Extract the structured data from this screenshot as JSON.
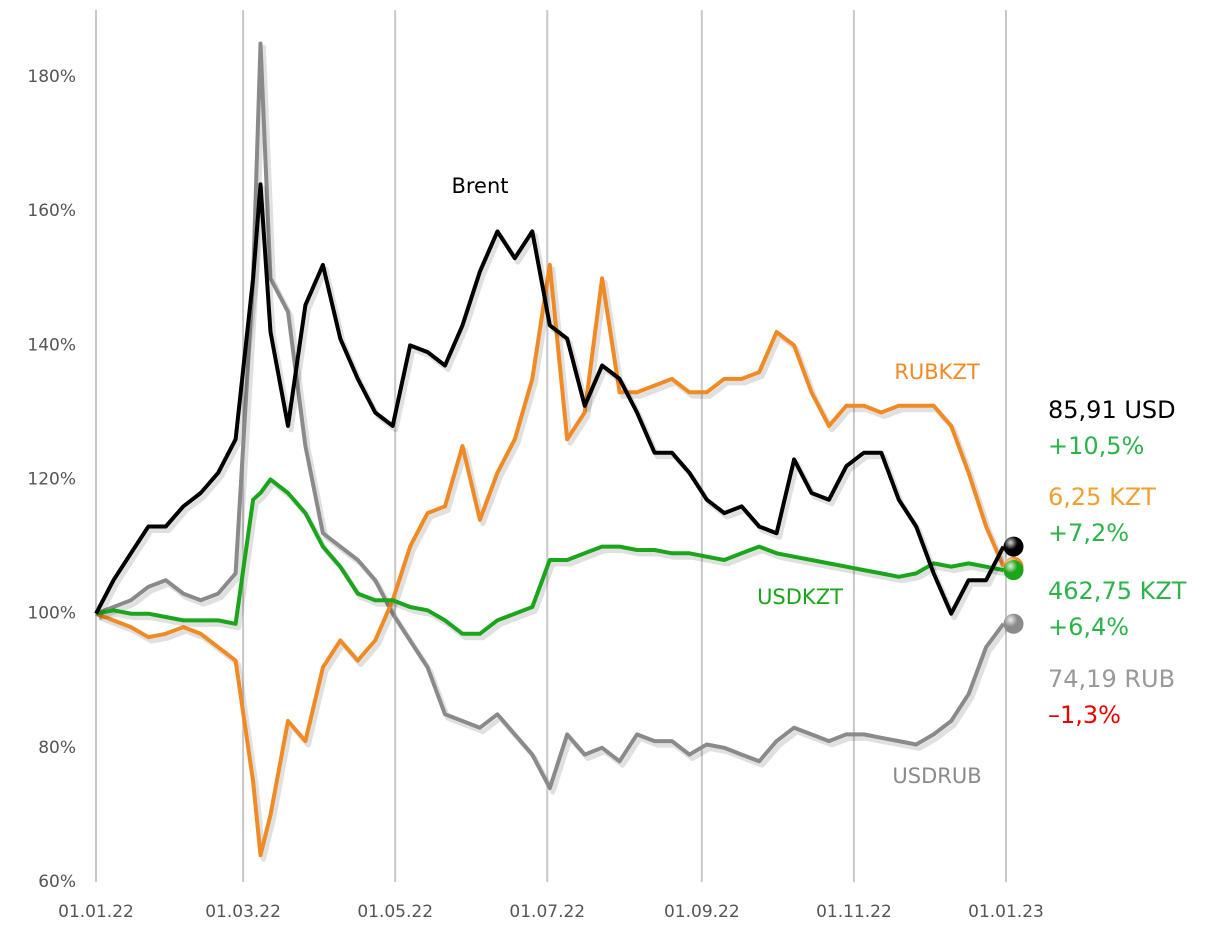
{
  "chart_data": {
    "type": "line",
    "x": [
      "01.01.22",
      "08.01.22",
      "15.01.22",
      "22.01.22",
      "29.01.22",
      "05.02.22",
      "12.02.22",
      "19.02.22",
      "26.02.22",
      "05.03.22",
      "08.03.22",
      "12.03.22",
      "19.03.22",
      "26.03.22",
      "02.04.22",
      "09.04.22",
      "16.04.22",
      "23.04.22",
      "30.04.22",
      "07.05.22",
      "14.05.22",
      "21.05.22",
      "28.05.22",
      "04.06.22",
      "11.06.22",
      "18.06.22",
      "25.06.22",
      "02.07.22",
      "09.07.22",
      "16.07.22",
      "23.07.22",
      "30.07.22",
      "06.08.22",
      "13.08.22",
      "20.08.22",
      "27.08.22",
      "03.09.22",
      "10.09.22",
      "17.09.22",
      "24.09.22",
      "01.10.22",
      "08.10.22",
      "15.10.22",
      "22.10.22",
      "29.10.22",
      "05.11.22",
      "12.11.22",
      "19.11.22",
      "26.11.22",
      "03.12.22",
      "10.12.22",
      "17.12.22",
      "24.12.22",
      "31.12.22"
    ],
    "xlim": [
      "01.01.22",
      "01.01.23"
    ],
    "xticks": [
      "01.01.22",
      "01.03.22",
      "01.05.22",
      "01.07.22",
      "01.09.22",
      "01.11.22",
      "01.01.23"
    ],
    "ylim": [
      60,
      190
    ],
    "yticks": [
      {
        "value": 60,
        "label": "60%"
      },
      {
        "value": 80,
        "label": "80%"
      },
      {
        "value": 100,
        "label": "100%"
      },
      {
        "value": 120,
        "label": "120%"
      },
      {
        "value": 140,
        "label": "140%"
      },
      {
        "value": 160,
        "label": "160%"
      },
      {
        "value": 180,
        "label": "180%"
      }
    ],
    "grid": "x",
    "series": [
      {
        "name": "USDRUB",
        "color": "#8a8a8a",
        "end_value": "74,19 RUB",
        "change": "–1,3%",
        "end_color": "#999999",
        "change_color": "#e60000",
        "values": [
          100,
          101,
          102,
          104,
          105,
          103,
          102,
          103,
          106,
          150,
          185,
          150,
          145,
          125,
          112,
          110,
          108,
          105,
          100,
          96,
          92,
          85,
          84,
          83,
          85,
          82,
          79,
          74,
          82,
          79,
          80,
          78,
          82,
          81,
          81,
          79,
          80.5,
          80,
          79,
          78,
          81,
          83,
          82,
          81,
          82,
          82,
          81.5,
          81,
          80.5,
          82,
          84,
          88,
          95,
          98.5
        ]
      },
      {
        "name": "RUBKZT",
        "color": "#f08a24",
        "end_value": "6,25 KZT",
        "change": "+7,2%",
        "end_color": "#f0a030",
        "change_color": "#2db34a",
        "values": [
          100,
          99,
          98,
          96.5,
          97,
          98,
          97,
          95,
          93,
          75,
          64,
          70,
          84,
          81,
          92,
          96,
          93,
          96,
          102,
          110,
          115,
          116,
          125,
          114,
          121,
          126,
          135,
          152,
          126,
          130,
          150,
          133,
          133,
          134,
          135,
          133,
          133,
          135,
          135,
          136,
          142,
          140,
          133,
          128,
          131,
          131,
          130,
          131,
          131,
          131,
          128,
          121,
          113,
          107
        ]
      },
      {
        "name": "USDKZT",
        "color": "#1aa51a",
        "end_value": "462,75 KZT",
        "change": "+6,4%",
        "end_color": "#2db34a",
        "change_color": "#2db34a",
        "values": [
          100,
          100.5,
          100,
          100,
          99.5,
          99,
          99,
          99,
          98.5,
          117,
          118,
          120,
          118,
          115,
          110,
          107,
          103,
          102,
          102,
          101,
          100.5,
          99,
          97,
          97,
          99,
          100,
          101,
          108,
          108,
          109,
          110,
          110,
          109.5,
          109.5,
          109,
          109,
          108.5,
          108,
          109,
          110,
          109,
          108.5,
          108,
          107.5,
          107,
          106.5,
          106,
          105.5,
          106,
          107.5,
          107,
          107.5,
          107,
          106.5
        ]
      },
      {
        "name": "Brent",
        "color": "#000000",
        "end_value": "85,91 USD",
        "change": "+10,5%",
        "end_color": "#000000",
        "change_color": "#2db34a",
        "values": [
          100,
          105,
          109,
          113,
          113,
          116,
          118,
          121,
          126,
          150,
          164,
          142,
          128,
          146,
          152,
          141,
          135,
          130,
          128,
          140,
          139,
          137,
          143,
          151,
          157,
          153,
          157,
          143,
          141,
          131,
          137,
          135,
          130,
          124,
          124,
          121,
          117,
          115,
          116,
          113,
          112,
          123,
          118,
          117,
          122,
          124,
          124,
          117,
          113,
          106,
          100,
          105,
          105,
          110
        ]
      }
    ]
  }
}
